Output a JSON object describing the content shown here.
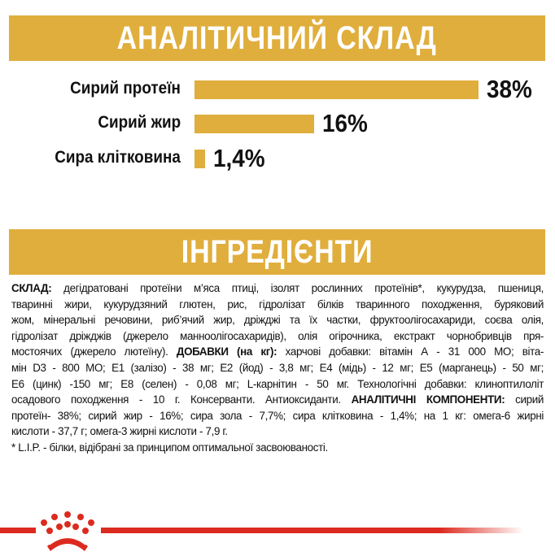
{
  "analytic": {
    "title": "АНАЛІТИЧНИЙ СКЛАД"
  },
  "chart_data": {
    "type": "bar",
    "orientation": "horizontal",
    "categories": [
      "Сирий протеїн",
      "Сирий жир",
      "Сира клітковина"
    ],
    "values": [
      38,
      16,
      1.4
    ],
    "value_labels": [
      "38%",
      "16%",
      "1,4%"
    ],
    "unit": "%",
    "bar_color": "#e0ae3d",
    "grid": false
  },
  "ingredients": {
    "title": "ІНГРЕДІЄНТИ",
    "lines": [
      [
        {
          "t": "СКЛАД:",
          "b": true
        },
        {
          "t": " дегідратовані протеїни м’яса птиці, ізолят рослинних протеїнів*, кукурудза, пшениця,",
          "b": false
        }
      ],
      [
        {
          "t": "тваринні жири, кукурудзяний глютен, рис, гідролізат білків тваринного походження, буряковий",
          "b": false
        }
      ],
      [
        {
          "t": "жом, мінеральні речовини, риб’ячий жир, дріжджі та їх частки, фруктоолігосахариди, соєва олія,",
          "b": false
        }
      ],
      [
        {
          "t": "гідролізат дріжджів (джерело манноолігосахаридів), олія огірочника, екстракт чорнобривців пря-",
          "b": false
        }
      ],
      [
        {
          "t": "мостоячих (джерело лютеїну). ",
          "b": false
        },
        {
          "t": "ДОБАВКИ (на кг):",
          "b": true
        },
        {
          "t": " харчові добавки: вітамін А - 31 000 МО; віта-",
          "b": false
        }
      ],
      [
        {
          "t": "мін D3 - 800 МО; Е1 (залізо) - 38 мг; Е2 (йод) - 3,8 мг; Е4 (мідь) - 12 мг; Е5 (марганець) - 50 мг;",
          "b": false
        }
      ],
      [
        {
          "t": "Е6 (цинк) -150 мг; Е8 (селен) - 0,08 мг; L-карнітин - 50 мг. Технологічні добавки: клиноптилоліт",
          "b": false
        }
      ],
      [
        {
          "t": "осадового походження - 10 г. Консерванти. Антиоксиданти. ",
          "b": false
        },
        {
          "t": "АНАЛІТИЧНІ КОМПОНЕНТИ:",
          "b": true
        },
        {
          "t": " сирий",
          "b": false
        }
      ],
      [
        {
          "t": "протеїн- 38%; сирий жир - 16%; сира зола - 7,7%; сира клітковина - 1,4%; на 1 кг: омега-6 жирні",
          "b": false
        }
      ],
      [
        {
          "t": "кислоти - 37,7 г; омега-3 жирні кислоти - 7,9 г.",
          "b": false
        }
      ],
      [
        {
          "t": "* L.I.P. - білки, відібрані за принципом оптимальної засвоюваності.",
          "b": false
        }
      ]
    ]
  },
  "logo": {
    "icon": "royal-canin-crown-icon",
    "color": "#dc2a1f"
  }
}
